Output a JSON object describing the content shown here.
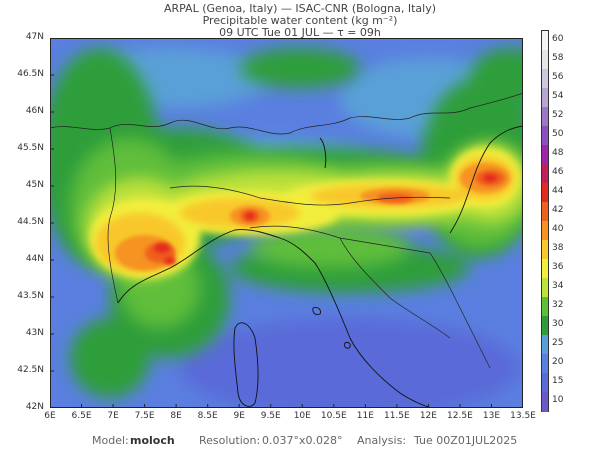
{
  "header": {
    "line1": "ARPAL (Genoa, Italy)  —  ISAC-CNR (Bologna, Italy)",
    "line2": "Precipitable water content (kg m⁻²)",
    "line3": "09 UTC Tue 01 JUL  —  τ = 09h"
  },
  "map": {
    "lat_labels": [
      "47N",
      "46.5N",
      "46N",
      "45.5N",
      "45N",
      "44.5N",
      "44N",
      "43.5N",
      "43N",
      "42.5N",
      "42N"
    ],
    "lon_labels": [
      "6E",
      "6.5E",
      "7E",
      "7.5E",
      "8E",
      "8.5E",
      "9E",
      "9.5E",
      "10E",
      "10.5E",
      "11E",
      "11.5E",
      "12E",
      "12.5E",
      "13E",
      "13.5E"
    ],
    "lat_range": [
      42,
      47
    ],
    "lon_range": [
      6,
      13.5
    ]
  },
  "colorbar": {
    "labels": [
      "60",
      "58",
      "56",
      "54",
      "52",
      "50",
      "48",
      "46",
      "44",
      "42",
      "40",
      "38",
      "36",
      "34",
      "32",
      "30",
      "25",
      "20",
      "15",
      "10"
    ],
    "colors": [
      "#f4f4f4",
      "#e6e6e6",
      "#cfc8dc",
      "#b7a6d2",
      "#9c78c6",
      "#8b4fc2",
      "#9d25a8",
      "#c01f5a",
      "#e32a1f",
      "#ef5f1f",
      "#f69323",
      "#f8c82c",
      "#f3ee3c",
      "#bfe23a",
      "#5fbe3a",
      "#2f9e3a",
      "#5aa0d8",
      "#5a7fe0",
      "#5a6ad8",
      "#6a5ac8"
    ]
  },
  "footer": {
    "model_label": "Model:",
    "model_value": "moloch",
    "resolution_label": "Resolution:",
    "resolution_value": "0.037°x0.028°",
    "analysis_label": "Analysis:",
    "analysis_value": "Tue 00Z01JUL2025"
  }
}
